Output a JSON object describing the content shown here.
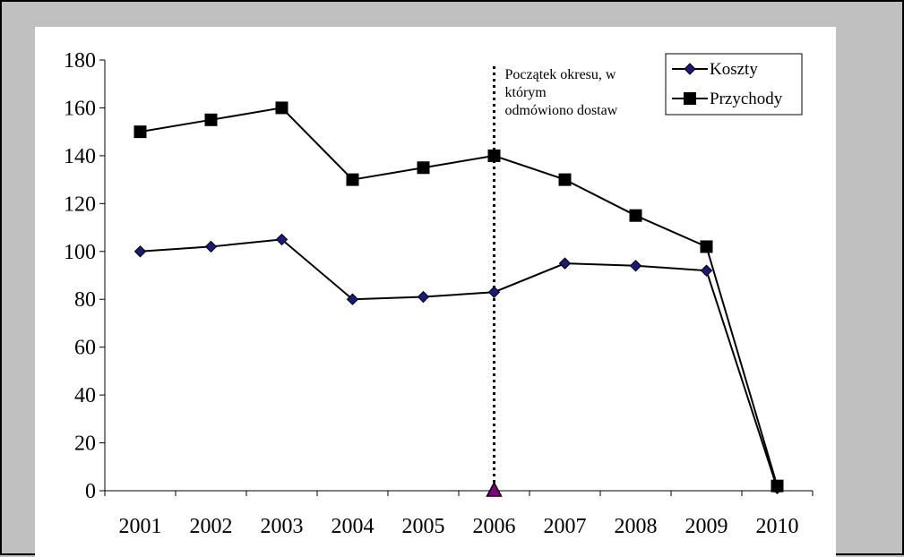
{
  "chart_data": {
    "type": "line",
    "categories": [
      "2001",
      "2002",
      "2003",
      "2004",
      "2005",
      "2006",
      "2007",
      "2008",
      "2009",
      "2010"
    ],
    "series": [
      {
        "name": "Koszty",
        "marker": "diamond",
        "marker_color": "#1a1a7a",
        "values": [
          100,
          102,
          105,
          80,
          81,
          83,
          95,
          94,
          92,
          1
        ]
      },
      {
        "name": "Przychody",
        "marker": "square",
        "marker_color": "#000000",
        "values": [
          150,
          155,
          160,
          130,
          135,
          140,
          130,
          115,
          102,
          2
        ]
      }
    ],
    "ylim": [
      0,
      180
    ],
    "y_ticks": [
      0,
      20,
      40,
      60,
      80,
      100,
      120,
      140,
      160,
      180
    ],
    "grid": false,
    "legend_position": "top-right",
    "annotation": {
      "category": "2006",
      "lines": [
        "Początek okresu, w",
        "którym",
        "odmówiono dostaw"
      ],
      "line_style": "dotted",
      "marker": "triangle",
      "marker_color": "#800080"
    },
    "colors": {
      "background": "#c0c0c0",
      "plot_background": "#ffffff",
      "line": "#000000"
    }
  }
}
